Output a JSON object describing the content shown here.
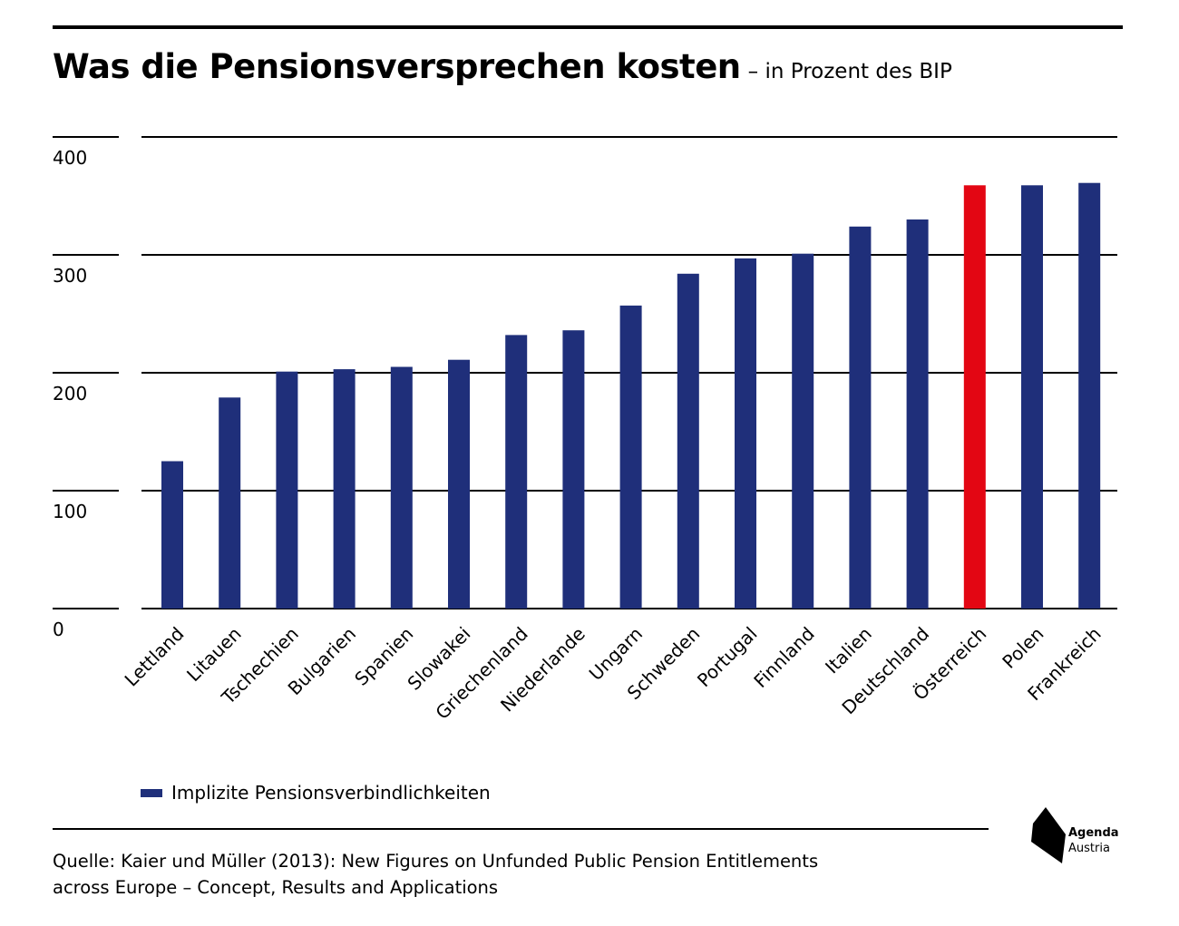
{
  "header": {
    "title": "Was die Pensionsversprechen kosten",
    "subtitle": "– in Prozent des BIP"
  },
  "chart_data": {
    "type": "bar",
    "categories": [
      "Lettland",
      "Litauen",
      "Tschechien",
      "Bulgarien",
      "Spanien",
      "Slowakei",
      "Griechenland",
      "Niederlande",
      "Ungarn",
      "Schweden",
      "Portugal",
      "Finnland",
      "Italien",
      "Deutschland",
      "Österreich",
      "Polen",
      "Frankreich"
    ],
    "series": [
      {
        "name": "Implizite Pensionsverbindlichkeiten",
        "values": [
          125,
          179,
          201,
          203,
          205,
          211,
          232,
          236,
          257,
          284,
          297,
          301,
          324,
          330,
          359,
          359,
          361
        ]
      }
    ],
    "highlight_category": "Österreich",
    "yticks": [
      0,
      100,
      200,
      300,
      400
    ],
    "ylim": [
      0,
      400
    ],
    "grid": true,
    "legend_position": "bottom-left",
    "colors": {
      "bar": "#1f2f7a",
      "highlight": "#e30613",
      "grid": "#000000"
    }
  },
  "legend": {
    "label": "Implizite Pensionsverbindlichkeiten"
  },
  "source": {
    "line1": "Quelle: Kaier und Müller (2013): New Figures on Unfunded Public Pension Entitlements",
    "line2": "across Europe – Concept, Results and Applications"
  },
  "logo": {
    "line1": "Agenda",
    "line2": "Austria",
    "icon": "agenda-austria-logo-icon"
  }
}
